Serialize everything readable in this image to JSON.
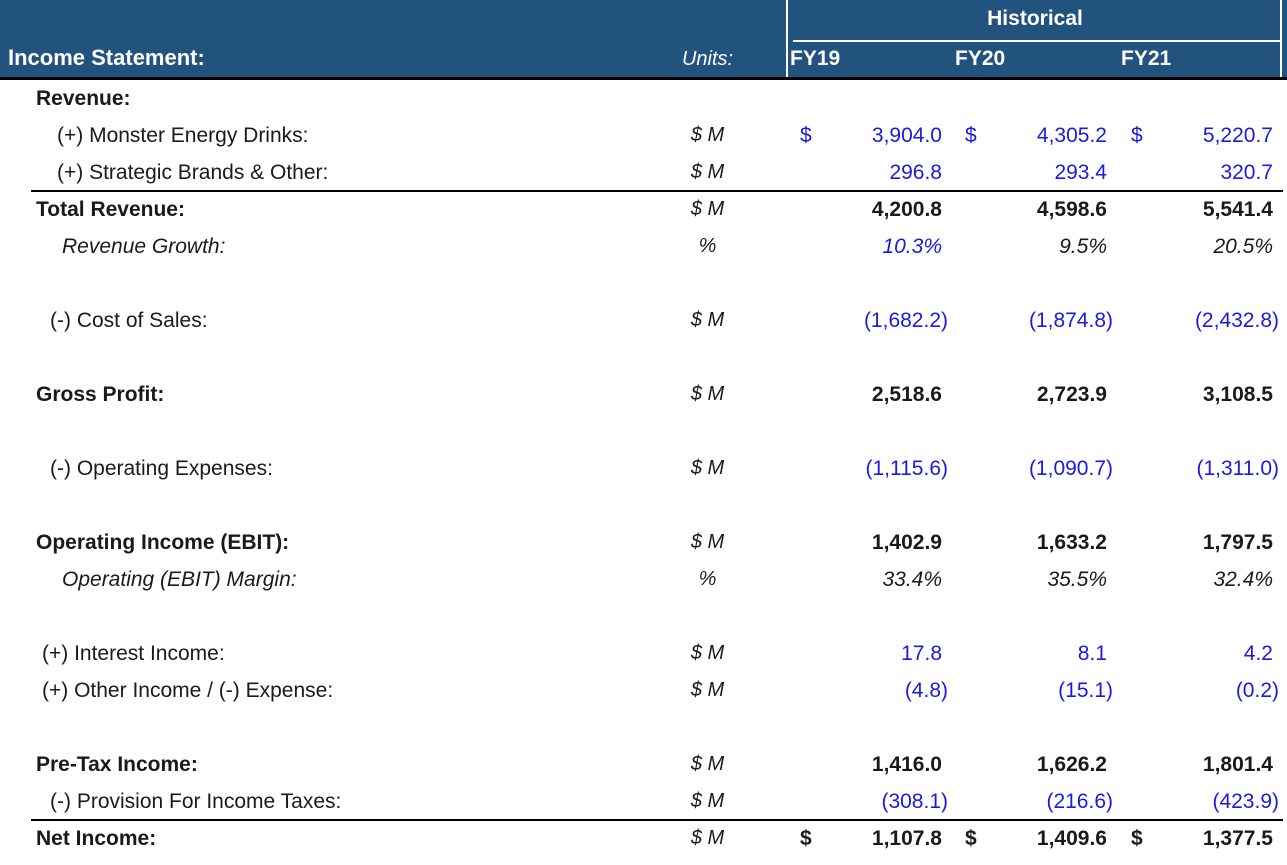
{
  "header": {
    "group_label": "Historical",
    "title": "Income Statement:",
    "units_label": "Units:",
    "columns": [
      {
        "label": "FY19"
      },
      {
        "label": "FY20"
      },
      {
        "label": "FY21"
      }
    ]
  },
  "colors": {
    "header_bg": "#22527E",
    "header_text": "#FFFFFF",
    "input_blue": "#1A1AE0",
    "text_black": "#1A1A1A",
    "border_black": "#000000"
  },
  "rows": [
    {
      "name": "revenue-section",
      "label": "Revenue:",
      "style": "bold",
      "indent": 0,
      "units": "",
      "values": [
        null,
        null,
        null
      ]
    },
    {
      "name": "monster-energy-drinks",
      "label": "(+) Monster Energy Drinks:",
      "style": "normal",
      "indent": 3,
      "units": "$ M",
      "dollar": true,
      "values": [
        {
          "t": "3,904.0",
          "c": "blue"
        },
        {
          "t": "4,305.2",
          "c": "blue"
        },
        {
          "t": "5,220.7",
          "c": "blue"
        }
      ]
    },
    {
      "name": "strategic-brands-other",
      "label": "(+) Strategic Brands & Other:",
      "style": "normal",
      "indent": 3,
      "units": "$ M",
      "values": [
        {
          "t": "296.8",
          "c": "blue"
        },
        {
          "t": "293.4",
          "c": "blue"
        },
        {
          "t": "320.7",
          "c": "blue"
        }
      ]
    },
    {
      "name": "total-revenue",
      "label": "Total Revenue:",
      "style": "bold",
      "indent": 0,
      "units": "$ M",
      "border_top": true,
      "values": [
        {
          "t": "4,200.8",
          "c": "black"
        },
        {
          "t": "4,598.6",
          "c": "black"
        },
        {
          "t": "5,541.4",
          "c": "black"
        }
      ]
    },
    {
      "name": "revenue-growth",
      "label": "Revenue Growth:",
      "style": "italic",
      "indent": 4,
      "units": "%",
      "values": [
        {
          "t": "10.3%",
          "c": "blue"
        },
        {
          "t": "9.5%",
          "c": "black"
        },
        {
          "t": "20.5%",
          "c": "black"
        }
      ]
    },
    {
      "spacer": true
    },
    {
      "name": "cost-of-sales",
      "label": "(-) Cost of Sales:",
      "style": "normal",
      "indent": 2,
      "units": "$ M",
      "values": [
        {
          "t": "(1,682.2)",
          "c": "blue",
          "neg": true
        },
        {
          "t": "(1,874.8)",
          "c": "blue",
          "neg": true
        },
        {
          "t": "(2,432.8)",
          "c": "blue",
          "neg": true
        }
      ]
    },
    {
      "spacer": true
    },
    {
      "name": "gross-profit",
      "label": "Gross Profit:",
      "style": "bold",
      "indent": 0,
      "units": "$ M",
      "values": [
        {
          "t": "2,518.6",
          "c": "black"
        },
        {
          "t": "2,723.9",
          "c": "black"
        },
        {
          "t": "3,108.5",
          "c": "black"
        }
      ]
    },
    {
      "spacer": true
    },
    {
      "name": "operating-expenses",
      "label": "(-) Operating Expenses:",
      "style": "normal",
      "indent": 2,
      "units": "$ M",
      "values": [
        {
          "t": "(1,115.6)",
          "c": "blue",
          "neg": true
        },
        {
          "t": "(1,090.7)",
          "c": "blue",
          "neg": true
        },
        {
          "t": "(1,311.0)",
          "c": "blue",
          "neg": true
        }
      ]
    },
    {
      "spacer": true
    },
    {
      "name": "operating-income-ebit",
      "label": "Operating Income (EBIT):",
      "style": "bold",
      "indent": 0,
      "units": "$ M",
      "values": [
        {
          "t": "1,402.9",
          "c": "black"
        },
        {
          "t": "1,633.2",
          "c": "black"
        },
        {
          "t": "1,797.5",
          "c": "black"
        }
      ]
    },
    {
      "name": "operating-ebit-margin",
      "label": "Operating (EBIT) Margin:",
      "style": "italic",
      "indent": 4,
      "units": "%",
      "values": [
        {
          "t": "33.4%",
          "c": "black"
        },
        {
          "t": "35.5%",
          "c": "black"
        },
        {
          "t": "32.4%",
          "c": "black"
        }
      ]
    },
    {
      "spacer": true
    },
    {
      "name": "interest-income",
      "label": "(+) Interest Income:",
      "style": "normal",
      "indent": 1,
      "units": "$ M",
      "values": [
        {
          "t": "17.8",
          "c": "blue"
        },
        {
          "t": "8.1",
          "c": "blue"
        },
        {
          "t": "4.2",
          "c": "blue"
        }
      ]
    },
    {
      "name": "other-income-expense",
      "label": "(+) Other Income / (-) Expense:",
      "style": "normal",
      "indent": 1,
      "units": "$ M",
      "values": [
        {
          "t": "(4.8)",
          "c": "blue",
          "neg": true
        },
        {
          "t": "(15.1)",
          "c": "blue",
          "neg": true
        },
        {
          "t": "(0.2)",
          "c": "blue",
          "neg": true
        }
      ]
    },
    {
      "spacer": true
    },
    {
      "name": "pre-tax-income",
      "label": "Pre-Tax Income:",
      "style": "bold",
      "indent": 0,
      "units": "$ M",
      "values": [
        {
          "t": "1,416.0",
          "c": "black"
        },
        {
          "t": "1,626.2",
          "c": "black"
        },
        {
          "t": "1,801.4",
          "c": "black"
        }
      ]
    },
    {
      "name": "provision-for-income-taxes",
      "label": "(-) Provision For Income Taxes:",
      "style": "normal",
      "indent": 2,
      "units": "$ M",
      "values": [
        {
          "t": "(308.1)",
          "c": "blue",
          "neg": true
        },
        {
          "t": "(216.6)",
          "c": "blue",
          "neg": true
        },
        {
          "t": "(423.9)",
          "c": "blue",
          "neg": true
        }
      ]
    },
    {
      "name": "net-income",
      "label": "Net Income:",
      "style": "bold",
      "indent": 0,
      "units": "$ M",
      "border_top": true,
      "dollar": true,
      "values": [
        {
          "t": "1,107.8",
          "c": "black"
        },
        {
          "t": "1,409.6",
          "c": "black"
        },
        {
          "t": "1,377.5",
          "c": "black"
        }
      ]
    }
  ]
}
